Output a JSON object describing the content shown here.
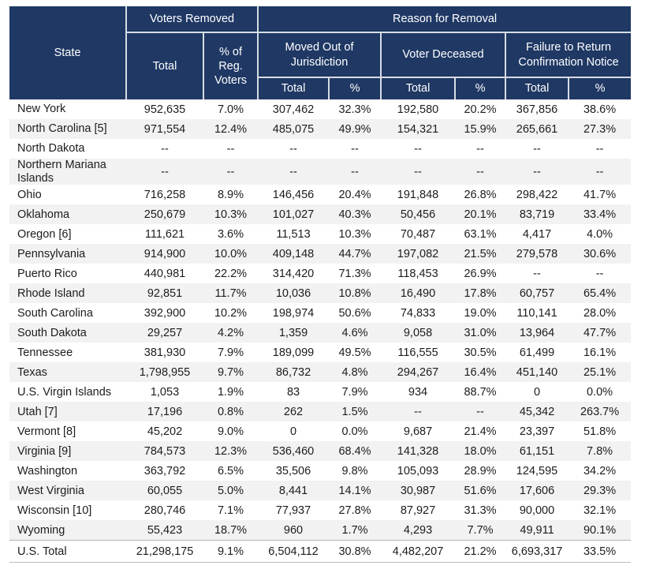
{
  "colors": {
    "header_bg": "#1F3864",
    "header_border": "#D6DCE4",
    "header_text": "#FFFFFF",
    "body_text": "#1C1C1C",
    "row_stripe": "#F2F2F2",
    "total_row_border": "#B3B3B3"
  },
  "table": {
    "header": {
      "state": "State",
      "voters_removed": "Voters Removed",
      "reason_for_removal": "Reason for Removal",
      "total": "Total",
      "pct_reg_voters": "% of Reg. Voters",
      "moved_out": "Moved Out of Jurisdiction",
      "voter_deceased": "Voter Deceased",
      "failure_return": "Failure to Return Confirmation Notice",
      "pct": "%"
    },
    "columns": [
      "State",
      "Voters Removed Total",
      "Voters Removed % of Reg. Voters",
      "Moved Out of Jurisdiction Total",
      "Moved Out of Jurisdiction %",
      "Voter Deceased Total",
      "Voter Deceased %",
      "Failure to Return Confirmation Notice Total",
      "Failure to Return Confirmation Notice %"
    ],
    "rows": [
      {
        "state": "New York",
        "values": [
          "952,635",
          "7.0%",
          "307,462",
          "32.3%",
          "192,580",
          "20.2%",
          "367,856",
          "38.6%"
        ]
      },
      {
        "state": "North Carolina [5]",
        "values": [
          "971,554",
          "12.4%",
          "485,075",
          "49.9%",
          "154,321",
          "15.9%",
          "265,661",
          "27.3%"
        ]
      },
      {
        "state": "North Dakota",
        "values": [
          "--",
          "--",
          "--",
          "--",
          "--",
          "--",
          "--",
          "--"
        ]
      },
      {
        "state": "Northern Mariana Islands",
        "values": [
          "--",
          "--",
          "--",
          "--",
          "--",
          "--",
          "--",
          "--"
        ]
      },
      {
        "state": "Ohio",
        "values": [
          "716,258",
          "8.9%",
          "146,456",
          "20.4%",
          "191,848",
          "26.8%",
          "298,422",
          "41.7%"
        ]
      },
      {
        "state": "Oklahoma",
        "values": [
          "250,679",
          "10.3%",
          "101,027",
          "40.3%",
          "50,456",
          "20.1%",
          "83,719",
          "33.4%"
        ]
      },
      {
        "state": "Oregon [6]",
        "values": [
          "111,621",
          "3.6%",
          "11,513",
          "10.3%",
          "70,487",
          "63.1%",
          "4,417",
          "4.0%"
        ]
      },
      {
        "state": "Pennsylvania",
        "values": [
          "914,900",
          "10.0%",
          "409,148",
          "44.7%",
          "197,082",
          "21.5%",
          "279,578",
          "30.6%"
        ]
      },
      {
        "state": "Puerto Rico",
        "values": [
          "440,981",
          "22.2%",
          "314,420",
          "71.3%",
          "118,453",
          "26.9%",
          "--",
          "--"
        ]
      },
      {
        "state": "Rhode Island",
        "values": [
          "92,851",
          "11.7%",
          "10,036",
          "10.8%",
          "16,490",
          "17.8%",
          "60,757",
          "65.4%"
        ]
      },
      {
        "state": "South Carolina",
        "values": [
          "392,900",
          "10.2%",
          "198,974",
          "50.6%",
          "74,833",
          "19.0%",
          "110,141",
          "28.0%"
        ]
      },
      {
        "state": "South Dakota",
        "values": [
          "29,257",
          "4.2%",
          "1,359",
          "4.6%",
          "9,058",
          "31.0%",
          "13,964",
          "47.7%"
        ]
      },
      {
        "state": "Tennessee",
        "values": [
          "381,930",
          "7.9%",
          "189,099",
          "49.5%",
          "116,555",
          "30.5%",
          "61,499",
          "16.1%"
        ]
      },
      {
        "state": "Texas",
        "values": [
          "1,798,955",
          "9.7%",
          "86,732",
          "4.8%",
          "294,267",
          "16.4%",
          "451,140",
          "25.1%"
        ]
      },
      {
        "state": "U.S. Virgin Islands",
        "values": [
          "1,053",
          "1.9%",
          "83",
          "7.9%",
          "934",
          "88.7%",
          "0",
          "0.0%"
        ]
      },
      {
        "state": "Utah [7]",
        "values": [
          "17,196",
          "0.8%",
          "262",
          "1.5%",
          "--",
          "--",
          "45,342",
          "263.7%"
        ]
      },
      {
        "state": "Vermont [8]",
        "values": [
          "45,202",
          "9.0%",
          "0",
          "0.0%",
          "9,687",
          "21.4%",
          "23,397",
          "51.8%"
        ]
      },
      {
        "state": "Virginia [9]",
        "values": [
          "784,573",
          "12.3%",
          "536,460",
          "68.4%",
          "141,328",
          "18.0%",
          "61,151",
          "7.8%"
        ]
      },
      {
        "state": "Washington",
        "values": [
          "363,792",
          "6.5%",
          "35,506",
          "9.8%",
          "105,093",
          "28.9%",
          "124,595",
          "34.2%"
        ]
      },
      {
        "state": "West Virginia",
        "values": [
          "60,055",
          "5.0%",
          "8,441",
          "14.1%",
          "30,987",
          "51.6%",
          "17,606",
          "29.3%"
        ]
      },
      {
        "state": "Wisconsin [10]",
        "values": [
          "280,746",
          "7.1%",
          "77,937",
          "27.8%",
          "87,927",
          "31.3%",
          "90,000",
          "32.1%"
        ]
      },
      {
        "state": "Wyoming",
        "values": [
          "55,423",
          "18.7%",
          "960",
          "1.7%",
          "4,293",
          "7.7%",
          "49,911",
          "90.1%"
        ]
      },
      {
        "state": "U.S. Total",
        "is_total": true,
        "values": [
          "21,298,175",
          "9.1%",
          "6,504,112",
          "30.8%",
          "4,482,207",
          "21.2%",
          "6,693,317",
          "33.5%"
        ]
      }
    ]
  }
}
